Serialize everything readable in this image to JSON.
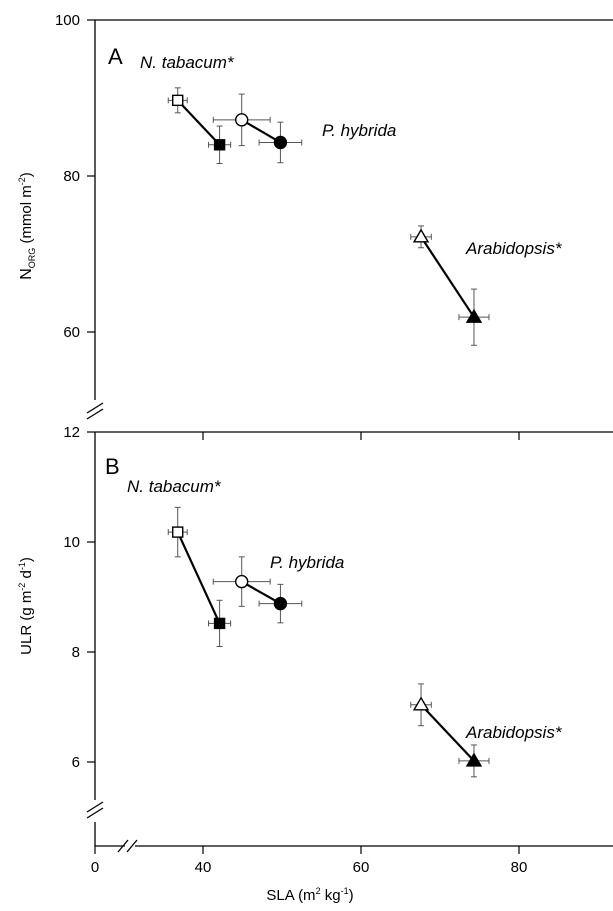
{
  "chart_data": [
    {
      "panel": "A",
      "type": "scatter",
      "ylabel_main": "N",
      "ylabel_sub": "ORG",
      "ylabel_unit_pre": " (mmol m",
      "ylabel_unit_sup": "-2",
      "ylabel_unit_post": ")",
      "ylim": [
        50,
        100
      ],
      "yticks": [
        60,
        80,
        100
      ],
      "series": [
        {
          "name": "N. tabacum*",
          "points": [
            {
              "x": 36.8,
              "y": 89.7,
              "xerr": 1.2,
              "yerr": 1.6,
              "marker": "square",
              "filled": false
            },
            {
              "x": 42.1,
              "y": 84.0,
              "xerr": 1.4,
              "yerr": 2.4,
              "marker": "square",
              "filled": true
            }
          ]
        },
        {
          "name": "P. hybrida",
          "points": [
            {
              "x": 44.9,
              "y": 87.2,
              "xerr": 3.6,
              "yerr": 3.3,
              "marker": "circle",
              "filled": false
            },
            {
              "x": 49.8,
              "y": 84.3,
              "xerr": 2.7,
              "yerr": 2.6,
              "marker": "circle",
              "filled": true
            }
          ]
        },
        {
          "name": "Arabidopsis*",
          "points": [
            {
              "x": 67.6,
              "y": 72.2,
              "xerr": 1.3,
              "yerr": 1.4,
              "marker": "triangle",
              "filled": false
            },
            {
              "x": 74.3,
              "y": 61.9,
              "xerr": 1.9,
              "yerr": 3.6,
              "marker": "triangle",
              "filled": true
            }
          ]
        }
      ]
    },
    {
      "panel": "B",
      "type": "scatter",
      "ylabel_main": "ULR",
      "ylabel_unit_pre": " (g m",
      "ylabel_unit_sup1": "-2",
      "ylabel_unit_mid": " d",
      "ylabel_unit_sup2": "-1",
      "ylabel_unit_post": ")",
      "ylim": [
        5,
        12
      ],
      "yticks": [
        6,
        8,
        10,
        12
      ],
      "xlabel_pre": "SLA (m",
      "xlabel_sup1": "2",
      "xlabel_mid": " kg",
      "xlabel_sup2": "-1",
      "xlabel_post": ")",
      "xlim": [
        0,
        90
      ],
      "xticks": [
        0,
        40,
        60,
        80
      ],
      "series": [
        {
          "name": "N. tabacum*",
          "points": [
            {
              "x": 36.8,
              "y": 10.18,
              "xerr": 1.2,
              "yerr": 0.45,
              "marker": "square",
              "filled": false
            },
            {
              "x": 42.1,
              "y": 8.52,
              "xerr": 1.4,
              "yerr": 0.42,
              "marker": "square",
              "filled": true
            }
          ]
        },
        {
          "name": "P. hybrida",
          "points": [
            {
              "x": 44.9,
              "y": 9.28,
              "xerr": 3.6,
              "yerr": 0.45,
              "marker": "circle",
              "filled": false
            },
            {
              "x": 49.8,
              "y": 8.88,
              "xerr": 2.7,
              "yerr": 0.35,
              "marker": "circle",
              "filled": true
            }
          ]
        },
        {
          "name": "Arabidopsis*",
          "points": [
            {
              "x": 67.6,
              "y": 7.04,
              "xerr": 1.3,
              "yerr": 0.38,
              "marker": "triangle",
              "filled": false
            },
            {
              "x": 74.3,
              "y": 6.02,
              "xerr": 1.9,
              "yerr": 0.29,
              "marker": "triangle",
              "filled": true
            }
          ]
        }
      ]
    }
  ]
}
